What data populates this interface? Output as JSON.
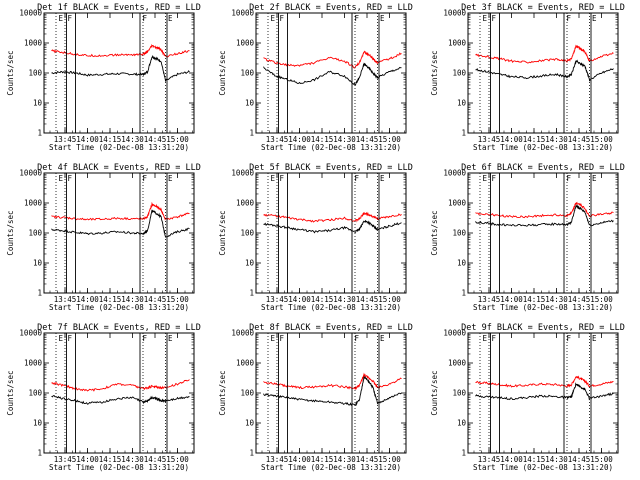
{
  "chart_data": [
    {
      "type": "line",
      "title": "Det 1f BLACK = Events, RED = LLD",
      "xlabel": "Start Time (02-Dec-08 13:31:20)",
      "ylabel": "Counts/sec",
      "x_ticks": [
        "13:45",
        "14:00",
        "14:15",
        "14:30",
        "14:45",
        "15:00"
      ],
      "y_ticks": [
        "1",
        "10",
        "100",
        "1000",
        "10000"
      ],
      "y_scale": "log",
      "ylim": [
        1,
        10000
      ],
      "x": [
        "13:36",
        "13:44",
        "13:52",
        "14:00",
        "14:10",
        "14:20",
        "14:30",
        "14:37",
        "14:40",
        "14:43",
        "14:46",
        "14:49",
        "14:52",
        "15:00",
        "15:08"
      ],
      "series": [
        {
          "name": "BLACK = Events",
          "color": "#000000",
          "values": [
            100,
            110,
            100,
            85,
            90,
            95,
            92,
            88,
            110,
            350,
            300,
            250,
            55,
            90,
            110
          ]
        },
        {
          "name": "RED = LLD",
          "color": "#ff0000",
          "values": [
            550,
            480,
            420,
            380,
            380,
            400,
            410,
            420,
            500,
            800,
            700,
            600,
            350,
            450,
            550
          ]
        }
      ]
    },
    {
      "type": "line",
      "title": "Det 2f BLACK = Events, RED = LLD",
      "xlabel": "Start Time (02-Dec-08 13:31:20)",
      "ylabel": "Counts/sec",
      "x_ticks": [
        "13:45",
        "14:00",
        "14:15",
        "14:30",
        "14:45",
        "15:00"
      ],
      "y_ticks": [
        "1",
        "10",
        "100",
        "1000",
        "10000"
      ],
      "y_scale": "log",
      "ylim": [
        1,
        10000
      ],
      "x": [
        "13:36",
        "13:44",
        "13:52",
        "14:00",
        "14:10",
        "14:20",
        "14:30",
        "14:37",
        "14:40",
        "14:43",
        "14:46",
        "14:49",
        "14:52",
        "15:00",
        "15:08"
      ],
      "series": [
        {
          "name": "BLACK = Events",
          "color": "#000000",
          "values": [
            150,
            80,
            60,
            45,
            60,
            110,
            80,
            40,
            70,
            200,
            150,
            100,
            70,
            110,
            150
          ]
        },
        {
          "name": "RED = LLD",
          "color": "#ff0000",
          "values": [
            300,
            220,
            180,
            180,
            220,
            320,
            250,
            150,
            220,
            500,
            420,
            300,
            220,
            300,
            450
          ]
        }
      ]
    },
    {
      "type": "line",
      "title": "Det 3f BLACK = Events, RED = LLD",
      "xlabel": "Start Time (02-Dec-08 13:31:20)",
      "ylabel": "Counts/sec",
      "x_ticks": [
        "13:45",
        "14:00",
        "14:15",
        "14:30",
        "14:45",
        "15:00"
      ],
      "y_ticks": [
        "1",
        "10",
        "100",
        "1000",
        "10000"
      ],
      "y_scale": "log",
      "ylim": [
        1,
        10000
      ],
      "x": [
        "13:36",
        "13:44",
        "13:52",
        "14:00",
        "14:10",
        "14:20",
        "14:30",
        "14:37",
        "14:40",
        "14:43",
        "14:46",
        "14:49",
        "14:52",
        "15:00",
        "15:08"
      ],
      "series": [
        {
          "name": "BLACK = Events",
          "color": "#000000",
          "values": [
            130,
            110,
            90,
            75,
            70,
            80,
            90,
            75,
            90,
            250,
            200,
            170,
            60,
            100,
            140
          ]
        },
        {
          "name": "RED = LLD",
          "color": "#ff0000",
          "values": [
            400,
            350,
            300,
            250,
            230,
            260,
            280,
            250,
            300,
            800,
            650,
            500,
            250,
            350,
            450
          ]
        }
      ]
    },
    {
      "type": "line",
      "title": "Det 4f BLACK = Events, RED = LLD",
      "xlabel": "Start Time (02-Dec-08 13:31:20)",
      "ylabel": "Counts/sec",
      "x_ticks": [
        "13:45",
        "14:00",
        "14:15",
        "14:30",
        "14:45",
        "15:00"
      ],
      "y_ticks": [
        "1",
        "10",
        "100",
        "1000",
        "10000"
      ],
      "y_scale": "log",
      "ylim": [
        1,
        10000
      ],
      "x": [
        "13:36",
        "13:44",
        "13:52",
        "14:00",
        "14:10",
        "14:20",
        "14:30",
        "14:37",
        "14:40",
        "14:43",
        "14:46",
        "14:49",
        "14:52",
        "15:00",
        "15:08"
      ],
      "series": [
        {
          "name": "BLACK = Events",
          "color": "#000000",
          "values": [
            130,
            120,
            105,
            95,
            100,
            110,
            100,
            95,
            120,
            550,
            450,
            350,
            75,
            110,
            140
          ]
        },
        {
          "name": "RED = LLD",
          "color": "#ff0000",
          "values": [
            350,
            330,
            300,
            280,
            290,
            310,
            300,
            290,
            350,
            900,
            750,
            600,
            280,
            350,
            450
          ]
        }
      ]
    },
    {
      "type": "line",
      "title": "Det 5f BLACK = Events, RED = LLD",
      "xlabel": "Start Time (02-Dec-08 13:31:20)",
      "ylabel": "Counts/sec",
      "x_ticks": [
        "13:45",
        "14:00",
        "14:15",
        "14:30",
        "14:45",
        "15:00"
      ],
      "y_ticks": [
        "1",
        "10",
        "100",
        "1000",
        "10000"
      ],
      "y_scale": "log",
      "ylim": [
        1,
        10000
      ],
      "x": [
        "13:36",
        "13:44",
        "13:52",
        "14:00",
        "14:10",
        "14:20",
        "14:30",
        "14:37",
        "14:40",
        "14:43",
        "14:46",
        "14:49",
        "14:52",
        "15:00",
        "15:08"
      ],
      "series": [
        {
          "name": "BLACK = Events",
          "color": "#000000",
          "values": [
            200,
            180,
            150,
            130,
            110,
            120,
            150,
            110,
            130,
            250,
            230,
            170,
            130,
            170,
            220
          ]
        },
        {
          "name": "RED = LLD",
          "color": "#ff0000",
          "values": [
            400,
            380,
            320,
            280,
            250,
            270,
            320,
            250,
            300,
            450,
            420,
            350,
            300,
            350,
            420
          ]
        }
      ]
    },
    {
      "type": "line",
      "title": "Det 6f BLACK = Events, RED = LLD",
      "xlabel": "Start Time (02-Dec-08 13:31:20)",
      "ylabel": "Counts/sec",
      "x_ticks": [
        "13:45",
        "14:00",
        "14:15",
        "14:30",
        "14:45",
        "15:00"
      ],
      "y_ticks": [
        "1",
        "10",
        "100",
        "1000",
        "10000"
      ],
      "y_scale": "log",
      "ylim": [
        1,
        10000
      ],
      "x": [
        "13:36",
        "13:44",
        "13:52",
        "14:00",
        "14:10",
        "14:20",
        "14:30",
        "14:37",
        "14:40",
        "14:43",
        "14:46",
        "14:49",
        "14:52",
        "15:00",
        "15:08"
      ],
      "series": [
        {
          "name": "BLACK = Events",
          "color": "#000000",
          "values": [
            230,
            210,
            190,
            180,
            180,
            190,
            200,
            190,
            230,
            800,
            650,
            500,
            180,
            220,
            260
          ]
        },
        {
          "name": "RED = LLD",
          "color": "#ff0000",
          "values": [
            450,
            420,
            380,
            350,
            350,
            380,
            400,
            380,
            450,
            1000,
            850,
            650,
            370,
            420,
            480
          ]
        }
      ]
    },
    {
      "type": "line",
      "title": "Det 7f BLACK = Events, RED = LLD",
      "xlabel": "Start Time (02-Dec-08 13:31:20)",
      "ylabel": "Counts/sec",
      "x_ticks": [
        "13:45",
        "14:00",
        "14:15",
        "14:30",
        "14:45",
        "15:00"
      ],
      "y_ticks": [
        "1",
        "10",
        "100",
        "1000",
        "10000"
      ],
      "y_scale": "log",
      "ylim": [
        1,
        10000
      ],
      "x": [
        "13:36",
        "13:44",
        "13:52",
        "14:00",
        "14:10",
        "14:20",
        "14:30",
        "14:37",
        "14:40",
        "14:43",
        "14:46",
        "14:49",
        "14:52",
        "15:00",
        "15:08"
      ],
      "series": [
        {
          "name": "BLACK = Events",
          "color": "#000000",
          "values": [
            80,
            65,
            55,
            45,
            50,
            65,
            70,
            50,
            55,
            70,
            65,
            55,
            55,
            65,
            75
          ]
        },
        {
          "name": "RED = LLD",
          "color": "#ff0000",
          "values": [
            220,
            180,
            140,
            120,
            140,
            200,
            180,
            140,
            150,
            170,
            160,
            150,
            150,
            200,
            280
          ]
        }
      ]
    },
    {
      "type": "line",
      "title": "Det 8f BLACK = Events, RED = LLD",
      "xlabel": "Start Time (02-Dec-08 13:31:20)",
      "ylabel": "Counts/sec",
      "x_ticks": [
        "13:45",
        "14:00",
        "14:15",
        "14:30",
        "14:45",
        "15:00"
      ],
      "y_ticks": [
        "1",
        "10",
        "100",
        "1000",
        "10000"
      ],
      "y_scale": "log",
      "ylim": [
        1,
        10000
      ],
      "x": [
        "13:36",
        "13:44",
        "13:52",
        "14:00",
        "14:10",
        "14:20",
        "14:30",
        "14:37",
        "14:40",
        "14:43",
        "14:46",
        "14:49",
        "14:52",
        "15:00",
        "15:08"
      ],
      "series": [
        {
          "name": "BLACK = Events",
          "color": "#000000",
          "values": [
            90,
            80,
            70,
            60,
            55,
            50,
            45,
            40,
            60,
            350,
            250,
            150,
            45,
            70,
            100
          ]
        },
        {
          "name": "RED = LLD",
          "color": "#ff0000",
          "values": [
            230,
            200,
            170,
            150,
            160,
            180,
            160,
            140,
            180,
            400,
            320,
            250,
            150,
            200,
            300
          ]
        }
      ]
    },
    {
      "type": "line",
      "title": "Det 9f BLACK = Events, RED = LLD",
      "xlabel": "Start Time (02-Dec-08 13:31:20)",
      "ylabel": "Counts/sec",
      "x_ticks": [
        "13:45",
        "14:00",
        "14:15",
        "14:30",
        "14:45",
        "15:00"
      ],
      "y_ticks": [
        "1",
        "10",
        "100",
        "1000",
        "10000"
      ],
      "y_scale": "log",
      "ylim": [
        1,
        10000
      ],
      "x": [
        "13:36",
        "13:44",
        "13:52",
        "14:00",
        "14:10",
        "14:20",
        "14:30",
        "14:37",
        "14:40",
        "14:43",
        "14:46",
        "14:49",
        "14:52",
        "15:00",
        "15:08"
      ],
      "series": [
        {
          "name": "BLACK = Events",
          "color": "#000000",
          "values": [
            80,
            75,
            70,
            65,
            70,
            80,
            75,
            70,
            75,
            200,
            160,
            130,
            65,
            80,
            95
          ]
        },
        {
          "name": "RED = LLD",
          "color": "#ff0000",
          "values": [
            230,
            210,
            190,
            170,
            180,
            200,
            190,
            170,
            190,
            350,
            300,
            250,
            170,
            200,
            240
          ]
        }
      ]
    }
  ],
  "markers": {
    "dotted_times": [
      "13:39",
      "13:45",
      "14:37",
      "14:52"
    ],
    "solid_times": [
      "13:46",
      "13:52",
      "14:35",
      "14:53"
    ],
    "labels": [
      {
        "time": "13:40",
        "text": "E"
      },
      {
        "time": "13:46",
        "text": "F"
      },
      {
        "time": "14:36",
        "text": "F"
      },
      {
        "time": "14:53",
        "text": "E"
      }
    ]
  }
}
